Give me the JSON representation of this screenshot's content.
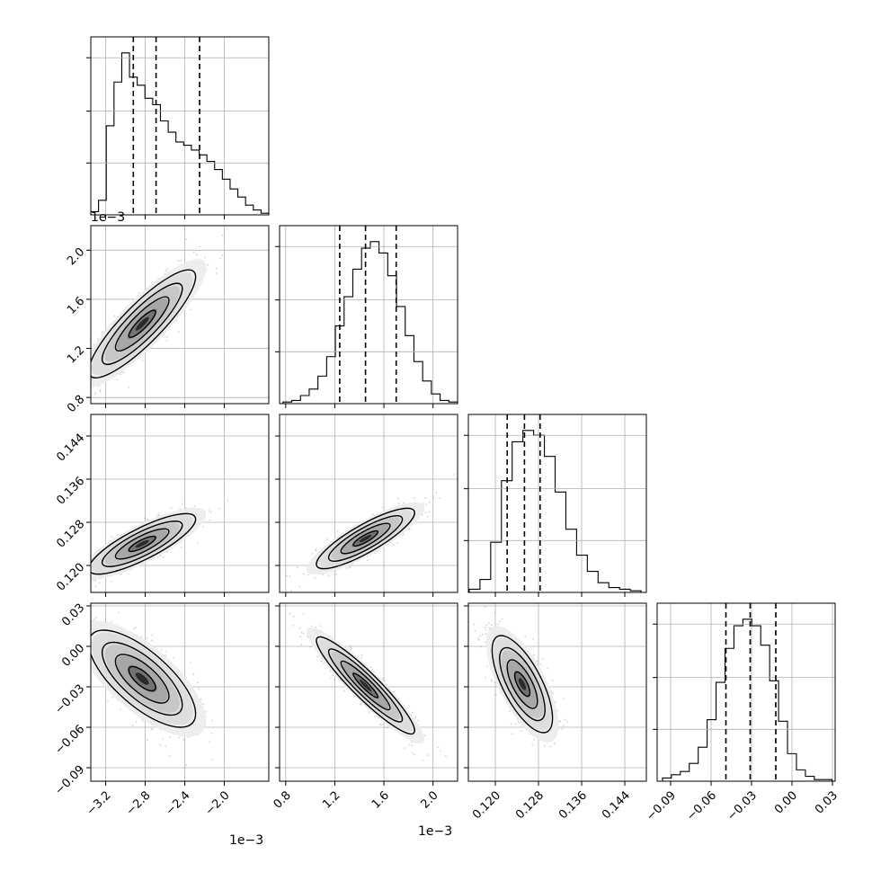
{
  "chart_data": {
    "type": "corner",
    "parameters": [
      {
        "axis_multiplier": "1e−3",
        "range": [
          -3.35,
          -1.55
        ],
        "ticks": [
          -3.2,
          -2.8,
          -2.4,
          -2.0
        ],
        "tick_labels": [
          "−3.2",
          "−2.8",
          "−2.4",
          "−2.0"
        ],
        "quantiles": [
          -2.92,
          -2.69,
          -2.25
        ],
        "hist": [
          0.02,
          0.09,
          0.55,
          0.82,
          1.0,
          0.85,
          0.8,
          0.72,
          0.68,
          0.58,
          0.51,
          0.45,
          0.43,
          0.4,
          0.37,
          0.33,
          0.28,
          0.22,
          0.16,
          0.11,
          0.06,
          0.03,
          0.01
        ]
      },
      {
        "axis_multiplier": "1e−3",
        "range": [
          0.75,
          2.2
        ],
        "ticks": [
          0.8,
          1.2,
          1.6,
          2.0
        ],
        "tick_labels": [
          "0.8",
          "1.2",
          "1.6",
          "2.0"
        ],
        "quantiles": [
          1.24,
          1.45,
          1.7
        ],
        "hist": [
          0.01,
          0.02,
          0.05,
          0.09,
          0.17,
          0.29,
          0.48,
          0.66,
          0.83,
          0.96,
          1.0,
          0.93,
          0.79,
          0.6,
          0.42,
          0.26,
          0.14,
          0.06,
          0.02,
          0.01
        ]
      },
      {
        "axis_multiplier": "",
        "range": [
          0.115,
          0.148
        ],
        "ticks": [
          0.12,
          0.128,
          0.136,
          0.144
        ],
        "tick_labels": [
          "0.120",
          "0.128",
          "0.136",
          "0.144"
        ],
        "quantiles": [
          0.1222,
          0.1254,
          0.1283
        ],
        "hist": [
          0.02,
          0.08,
          0.31,
          0.69,
          0.93,
          1.0,
          0.97,
          0.84,
          0.62,
          0.39,
          0.23,
          0.13,
          0.06,
          0.03,
          0.02,
          0.01
        ]
      },
      {
        "axis_multiplier": "",
        "range": [
          -0.1,
          0.032
        ],
        "ticks": [
          -0.09,
          -0.06,
          -0.03,
          0.0,
          0.03
        ],
        "tick_labels": [
          "−0.09",
          "−0.06",
          "−0.03",
          "0.00",
          "0.03"
        ],
        "quantiles": [
          -0.049,
          -0.031,
          -0.012
        ],
        "hist": [
          0.02,
          0.04,
          0.06,
          0.11,
          0.21,
          0.38,
          0.61,
          0.82,
          0.96,
          1.0,
          0.96,
          0.84,
          0.62,
          0.37,
          0.17,
          0.07,
          0.03,
          0.01,
          0.01
        ]
      }
    ],
    "pairs": [
      {
        "x": 0,
        "y": 1,
        "center": [
          -2.83,
          1.4
        ],
        "sd": [
          0.27,
          0.22
        ],
        "corr": 0.87
      },
      {
        "x": 0,
        "y": 2,
        "center": [
          -2.83,
          0.124
        ],
        "sd": [
          0.27,
          0.0028
        ],
        "corr": 0.82
      },
      {
        "x": 1,
        "y": 2,
        "center": [
          1.45,
          0.125
        ],
        "sd": [
          0.2,
          0.0028
        ],
        "corr": 0.85
      },
      {
        "x": 0,
        "y": 3,
        "center": [
          -2.83,
          -0.024
        ],
        "sd": [
          0.27,
          0.018
        ],
        "corr": -0.72
      },
      {
        "x": 1,
        "y": 3,
        "center": [
          1.45,
          -0.029
        ],
        "sd": [
          0.2,
          0.018
        ],
        "corr": -0.93
      },
      {
        "x": 2,
        "y": 3,
        "center": [
          0.125,
          -0.028
        ],
        "sd": [
          0.0028,
          0.018
        ],
        "corr": -0.7
      }
    ],
    "grid": true
  }
}
